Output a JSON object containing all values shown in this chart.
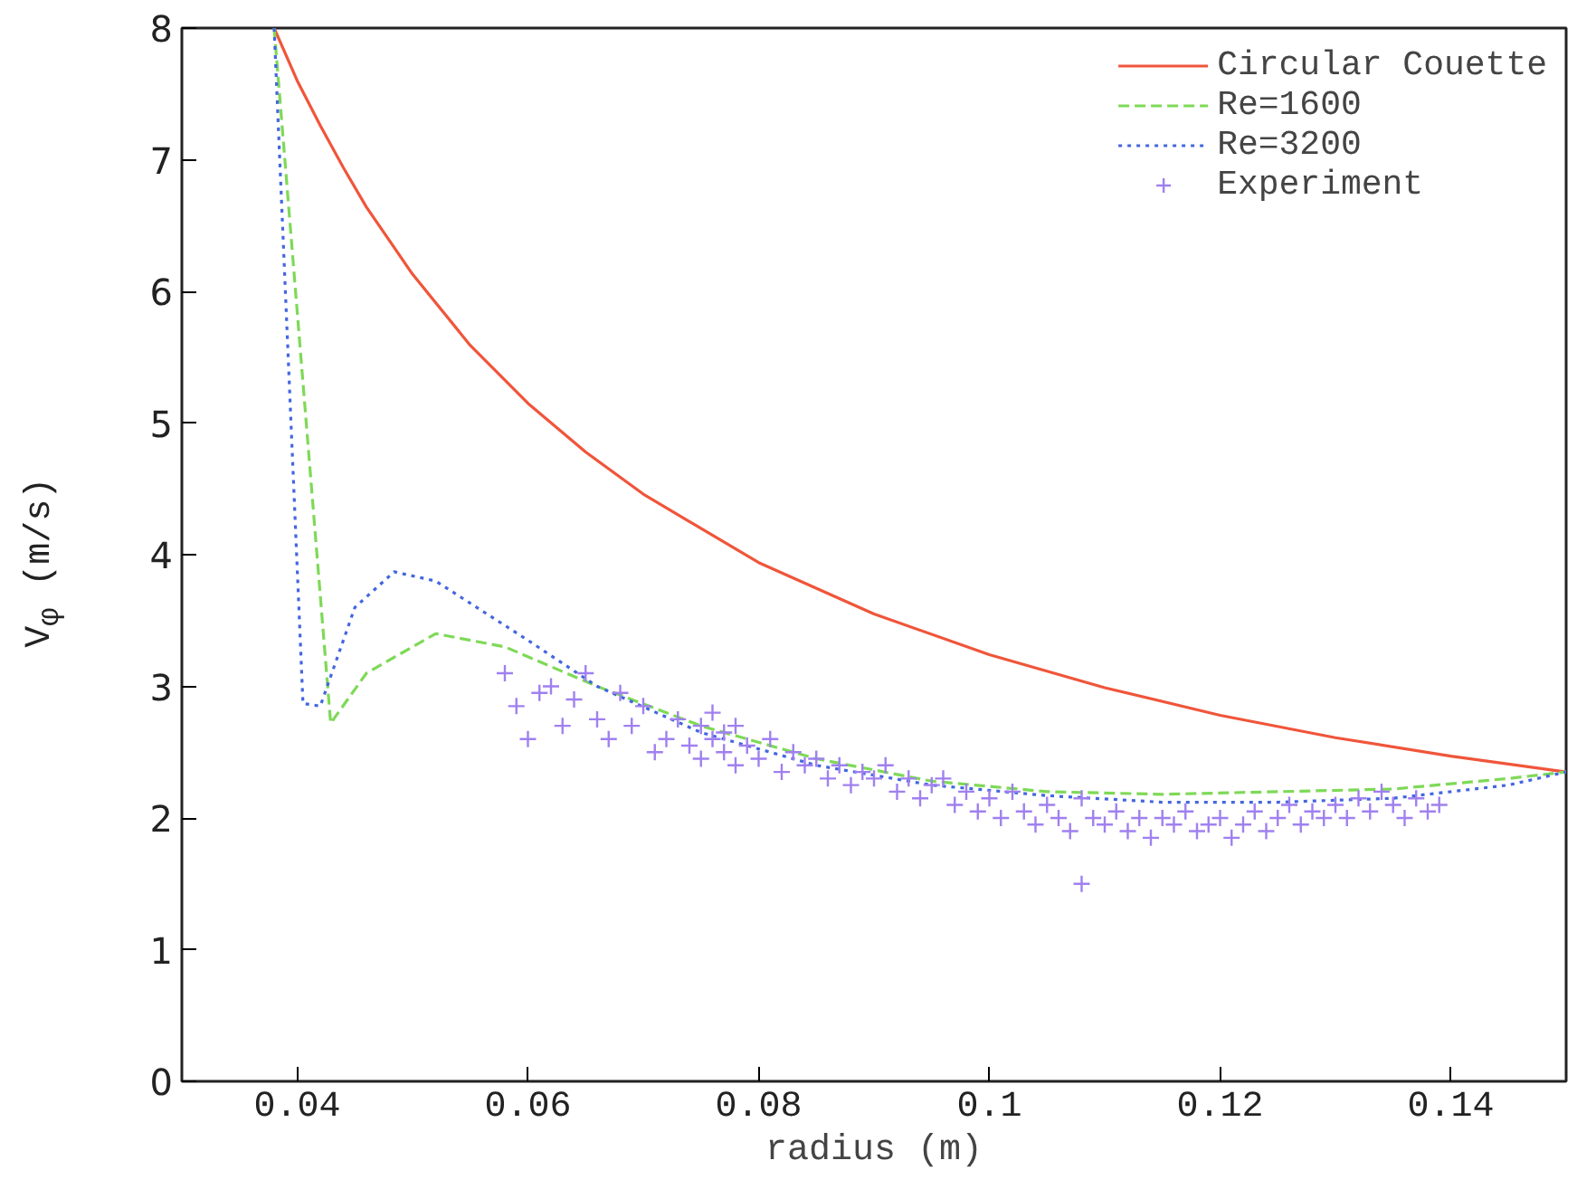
{
  "chart_data": {
    "type": "line",
    "xlabel": "radius (m)",
    "ylabel": "V$_{φ}$ (m/s)",
    "xlim": [
      0.03,
      0.15
    ],
    "xticks": [
      0.04,
      0.06,
      0.08,
      {
        "value": 0.1,
        "label": "0.1"
      },
      0.12,
      0.14
    ],
    "ylim": [
      0,
      8
    ],
    "yticks": [
      0,
      1,
      2,
      3,
      4,
      5,
      6,
      7,
      8
    ],
    "grid": false,
    "legend": "top right",
    "series": [
      {
        "name": "Circular Couette",
        "color": "#f0553a",
        "line_style": "solid",
        "x": [
          0.038,
          0.04,
          0.042,
          0.044,
          0.046,
          0.05,
          0.055,
          0.06,
          0.065,
          0.07,
          0.08,
          0.09,
          0.1,
          0.11,
          0.12,
          0.13,
          0.14,
          0.15
        ],
        "values": [
          8.0,
          7.6,
          7.26,
          6.94,
          6.64,
          6.13,
          5.59,
          5.15,
          4.78,
          4.46,
          3.94,
          3.55,
          3.24,
          2.99,
          2.78,
          2.61,
          2.47,
          2.35
        ]
      },
      {
        "name": "Re=1600",
        "color": "#7ed957",
        "line_style": "dashed",
        "x": [
          0.038,
          0.0429,
          0.046,
          0.052,
          0.058,
          0.066,
          0.075,
          0.085,
          0.095,
          0.105,
          0.115,
          0.125,
          0.135,
          0.145,
          0.15
        ],
        "values": [
          8.0,
          2.72,
          3.1,
          3.4,
          3.3,
          3.0,
          2.7,
          2.45,
          2.28,
          2.2,
          2.18,
          2.2,
          2.22,
          2.3,
          2.35
        ]
      },
      {
        "name": "Re=3200",
        "color": "#4466e0",
        "line_style": "dotted",
        "x": [
          0.038,
          0.0405,
          0.042,
          0.045,
          0.0484,
          0.052,
          0.06,
          0.066,
          0.075,
          0.085,
          0.095,
          0.105,
          0.115,
          0.125,
          0.135,
          0.145,
          0.15
        ],
        "values": [
          8.0,
          2.87,
          2.85,
          3.6,
          3.87,
          3.8,
          3.35,
          3.0,
          2.65,
          2.4,
          2.25,
          2.17,
          2.12,
          2.12,
          2.15,
          2.25,
          2.35
        ]
      },
      {
        "name": "Experiment",
        "color": "#a080f0",
        "type": "scatter",
        "marker": "cross",
        "x": [
          0.058,
          0.059,
          0.06,
          0.061,
          0.062,
          0.063,
          0.064,
          0.065,
          0.066,
          0.067,
          0.068,
          0.069,
          0.07,
          0.071,
          0.072,
          0.073,
          0.074,
          0.075,
          0.075,
          0.076,
          0.076,
          0.077,
          0.077,
          0.078,
          0.078,
          0.079,
          0.08,
          0.081,
          0.082,
          0.083,
          0.084,
          0.085,
          0.086,
          0.087,
          0.088,
          0.089,
          0.09,
          0.091,
          0.092,
          0.093,
          0.094,
          0.095,
          0.096,
          0.097,
          0.098,
          0.099,
          0.1,
          0.101,
          0.102,
          0.103,
          0.104,
          0.105,
          0.106,
          0.107,
          0.108,
          0.108,
          0.109,
          0.11,
          0.111,
          0.112,
          0.113,
          0.114,
          0.115,
          0.116,
          0.117,
          0.118,
          0.119,
          0.12,
          0.121,
          0.122,
          0.123,
          0.124,
          0.125,
          0.126,
          0.127,
          0.128,
          0.129,
          0.13,
          0.131,
          0.132,
          0.133,
          0.134,
          0.135,
          0.136,
          0.137,
          0.138,
          0.139
        ],
        "values": [
          3.1,
          2.85,
          2.6,
          2.95,
          3.0,
          2.7,
          2.9,
          3.1,
          2.75,
          2.6,
          2.95,
          2.7,
          2.85,
          2.5,
          2.6,
          2.75,
          2.55,
          2.7,
          2.45,
          2.8,
          2.6,
          2.5,
          2.65,
          2.4,
          2.7,
          2.55,
          2.45,
          2.6,
          2.35,
          2.5,
          2.4,
          2.45,
          2.3,
          2.4,
          2.25,
          2.35,
          2.3,
          2.4,
          2.2,
          2.3,
          2.15,
          2.25,
          2.3,
          2.1,
          2.2,
          2.05,
          2.15,
          2.0,
          2.2,
          2.05,
          1.95,
          2.1,
          2.0,
          1.9,
          1.5,
          2.15,
          2.0,
          1.95,
          2.05,
          1.9,
          2.0,
          1.85,
          2.0,
          1.95,
          2.05,
          1.9,
          1.95,
          2.0,
          1.85,
          1.95,
          2.05,
          1.9,
          2.0,
          2.1,
          1.95,
          2.05,
          2.0,
          2.1,
          2.0,
          2.15,
          2.05,
          2.2,
          2.1,
          2.0,
          2.15,
          2.05,
          2.1
        ]
      }
    ]
  }
}
